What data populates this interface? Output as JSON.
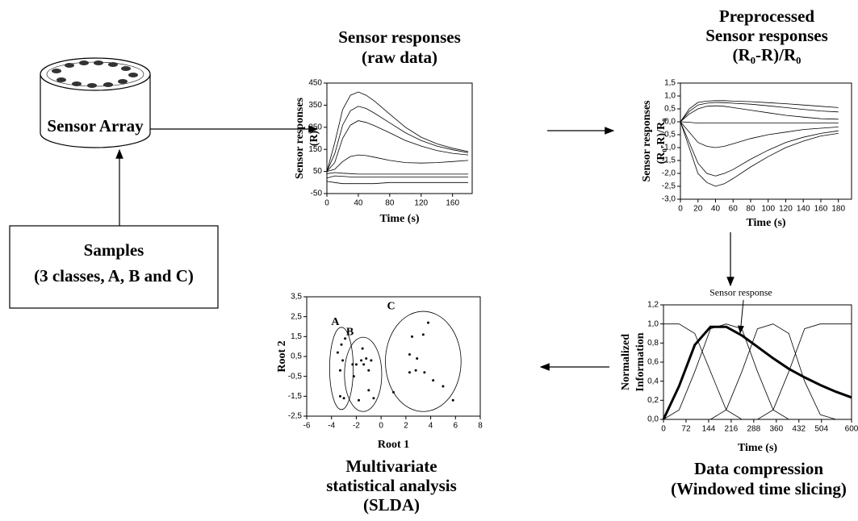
{
  "diagram": {
    "sensor_array": "Sensor Array",
    "samples": {
      "title": "Samples",
      "subtitle": "(3 classes, A, B and C)"
    }
  },
  "chart_data": [
    {
      "type": "line",
      "title": [
        "Sensor responses",
        "(raw data)"
      ],
      "ylabel": [
        "Sensor responses",
        "(R)"
      ],
      "xlabel": "Time (s)",
      "x": [
        0,
        10,
        20,
        30,
        40,
        50,
        60,
        80,
        100,
        120,
        140,
        160,
        180
      ],
      "xlim": [
        0,
        185
      ],
      "xticks": [
        0,
        40,
        80,
        120,
        160
      ],
      "ylim": [
        -50,
        450
      ],
      "yticks": [
        -50,
        50,
        150,
        250,
        350,
        450
      ],
      "color": "#000000",
      "series": [
        {
          "values": [
            50,
            180,
            330,
            395,
            410,
            395,
            370,
            310,
            250,
            205,
            175,
            155,
            140
          ]
        },
        {
          "values": [
            50,
            130,
            260,
            325,
            345,
            335,
            315,
            270,
            225,
            190,
            165,
            148,
            135
          ]
        },
        {
          "values": [
            50,
            90,
            200,
            260,
            280,
            272,
            258,
            225,
            190,
            165,
            145,
            132,
            125
          ]
        },
        {
          "values": [
            50,
            60,
            95,
            118,
            125,
            122,
            115,
            100,
            90,
            88,
            90,
            95,
            100
          ]
        },
        {
          "values": [
            40,
            45,
            42,
            40,
            38,
            38,
            38,
            38,
            38,
            38,
            38,
            38,
            38
          ]
        },
        {
          "values": [
            20,
            30,
            28,
            25,
            25,
            25,
            25,
            25,
            25,
            25,
            25,
            25,
            25
          ]
        },
        {
          "values": [
            5,
            0,
            -5,
            -5,
            -5,
            -5,
            -5,
            0,
            0,
            0,
            0,
            0,
            0
          ]
        }
      ]
    },
    {
      "type": "line",
      "title": [
        "Preprocessed",
        "Sensor responses",
        "(R₀-R)/R₀"
      ],
      "ylabel": [
        "Sensor responses",
        "(R₀-R)/R₀"
      ],
      "xlabel": "Time (s)",
      "x": [
        0,
        10,
        20,
        30,
        40,
        50,
        60,
        80,
        100,
        120,
        140,
        160,
        180
      ],
      "xlim": [
        0,
        195
      ],
      "xticks": [
        0,
        20,
        40,
        60,
        80,
        100,
        120,
        140,
        160,
        180
      ],
      "ylim": [
        -3,
        1.5
      ],
      "yticks": [
        {
          "value": 1.5,
          "label": "1,5"
        },
        {
          "value": 1,
          "label": "1,0"
        },
        {
          "value": 0.5,
          "label": "0,5"
        },
        {
          "value": 0,
          "label": "0,0"
        },
        {
          "value": -0.5,
          "label": "-0,5"
        },
        {
          "value": -1,
          "label": "-1,0"
        },
        {
          "value": -1.5,
          "label": "-1,5"
        },
        {
          "value": -2,
          "label": "-2,0"
        },
        {
          "value": -2.5,
          "label": "-2,5"
        },
        {
          "value": -3,
          "label": "-3,0"
        }
      ],
      "color": "#000000",
      "series": [
        {
          "values": [
            0,
            0.5,
            0.75,
            0.8,
            0.82,
            0.82,
            0.8,
            0.78,
            0.74,
            0.7,
            0.65,
            0.6,
            0.55
          ]
        },
        {
          "values": [
            0,
            0.4,
            0.65,
            0.72,
            0.75,
            0.74,
            0.72,
            0.68,
            0.62,
            0.55,
            0.48,
            0.42,
            0.38
          ]
        },
        {
          "values": [
            0,
            0.3,
            0.5,
            0.6,
            0.62,
            0.6,
            0.55,
            0.45,
            0.35,
            0.25,
            0.18,
            0.12,
            0.1
          ]
        },
        {
          "values": [
            0,
            -0.02,
            -0.05,
            -0.05,
            -0.05,
            -0.05,
            -0.05,
            -0.05,
            -0.05,
            -0.05,
            -0.05,
            -0.05,
            -0.05
          ]
        },
        {
          "values": [
            0,
            -0.4,
            -0.8,
            -0.95,
            -1,
            -0.95,
            -0.85,
            -0.65,
            -0.5,
            -0.4,
            -0.3,
            -0.25,
            -0.2
          ]
        },
        {
          "values": [
            0,
            -0.8,
            -1.6,
            -2,
            -2.1,
            -2,
            -1.85,
            -1.45,
            -1.1,
            -0.8,
            -0.6,
            -0.45,
            -0.35
          ]
        },
        {
          "values": [
            0,
            -1,
            -2,
            -2.35,
            -2.5,
            -2.4,
            -2.2,
            -1.75,
            -1.35,
            -1,
            -0.75,
            -0.55,
            -0.45
          ]
        }
      ]
    },
    {
      "type": "line",
      "title": [
        "Data compression",
        "(Windowed time slicing)"
      ],
      "ylabel": [
        "Normalized",
        "Information"
      ],
      "xlabel": "Time (s)",
      "annotation": "Sensor response",
      "x": [
        0,
        50,
        100,
        150,
        200,
        250,
        300,
        350,
        400,
        450,
        500,
        550,
        600
      ],
      "xlim": [
        0,
        600
      ],
      "xticks": [
        0,
        72,
        144,
        216,
        288,
        360,
        432,
        504,
        600
      ],
      "ylim": [
        0,
        1.2
      ],
      "yticks": [
        {
          "value": 0,
          "label": "0,0"
        },
        {
          "value": 0.2,
          "label": "0,2"
        },
        {
          "value": 0.4,
          "label": "0,4"
        },
        {
          "value": 0.6,
          "label": "0,6"
        },
        {
          "value": 0.8,
          "label": "0,8"
        },
        {
          "value": 1,
          "label": "1,0"
        },
        {
          "value": 1.2,
          "label": "1,2"
        }
      ],
      "color": "#000000",
      "series": [
        {
          "values": [
            0,
            0.35,
            0.78,
            0.97,
            0.97,
            0.88,
            0.76,
            0.64,
            0.53,
            0.44,
            0.36,
            0.29,
            0.23
          ],
          "line_width": 3
        },
        {
          "values": [
            1,
            1,
            0.9,
            0.5,
            0.1,
            0,
            0,
            0,
            0,
            0,
            0,
            0,
            0
          ],
          "line_width": 0.8
        },
        {
          "values": [
            0,
            0.1,
            0.5,
            0.95,
            1,
            0.95,
            0.5,
            0.1,
            0,
            0,
            0,
            0,
            0
          ],
          "line_width": 0.8
        },
        {
          "values": [
            0,
            0,
            0,
            0,
            0.1,
            0.5,
            0.95,
            1,
            0.9,
            0.4,
            0.05,
            0,
            0
          ],
          "line_width": 0.8
        },
        {
          "values": [
            0,
            0,
            0,
            0,
            0,
            0,
            0,
            0.1,
            0.5,
            0.95,
            1,
            1,
            1
          ],
          "line_width": 0.8
        }
      ]
    },
    {
      "type": "scatter",
      "title": [
        "Multivariate",
        "statistical analysis",
        "(SLDA)"
      ],
      "ylabel": [
        "Root 2"
      ],
      "xlabel": "Root 1",
      "xlim": [
        -6,
        8
      ],
      "xticks": [
        -6,
        -4,
        -2,
        0,
        2,
        4,
        6,
        8
      ],
      "ylim": [
        -2.5,
        3.5
      ],
      "yticks": [
        {
          "value": 3.5,
          "label": "3,5"
        },
        {
          "value": 2.5,
          "label": "2,5"
        },
        {
          "value": 1.5,
          "label": "1,5"
        },
        {
          "value": 0.5,
          "label": "0,5"
        },
        {
          "value": -0.5,
          "label": "-0,5"
        },
        {
          "value": -1.5,
          "label": "-1,5"
        },
        {
          "value": -2.5,
          "label": "-2,5"
        }
      ],
      "color": "#000000",
      "series": [
        {
          "name": "A",
          "x": [
            -3.5,
            -3.2,
            -3.1,
            -2.9,
            -3.3,
            -3.0,
            -3.3
          ],
          "y": [
            0.7,
            1.1,
            0.3,
            1.4,
            -0.2,
            -1.6,
            -1.5
          ]
        },
        {
          "name": "B",
          "x": [
            -2.3,
            -2.0,
            -1.6,
            -1.4,
            -1.2,
            -1.0,
            -0.8,
            -1.5,
            -2.2,
            -1.8,
            -1.0,
            -0.6
          ],
          "y": [
            0.1,
            0.1,
            0.3,
            0.1,
            0.4,
            -0.2,
            0.3,
            0.9,
            -0.5,
            -1.7,
            -1.2,
            -1.6
          ]
        },
        {
          "name": "C",
          "x": [
            1.0,
            2.3,
            2.5,
            2.9,
            3.4,
            2.8,
            2.3,
            3.5,
            4.2,
            3.8,
            5.0,
            5.8
          ],
          "y": [
            -1.3,
            0.6,
            1.5,
            0.4,
            1.6,
            -0.2,
            -0.3,
            -0.3,
            -0.7,
            2.2,
            -1.0,
            -1.7
          ]
        }
      ]
    }
  ]
}
